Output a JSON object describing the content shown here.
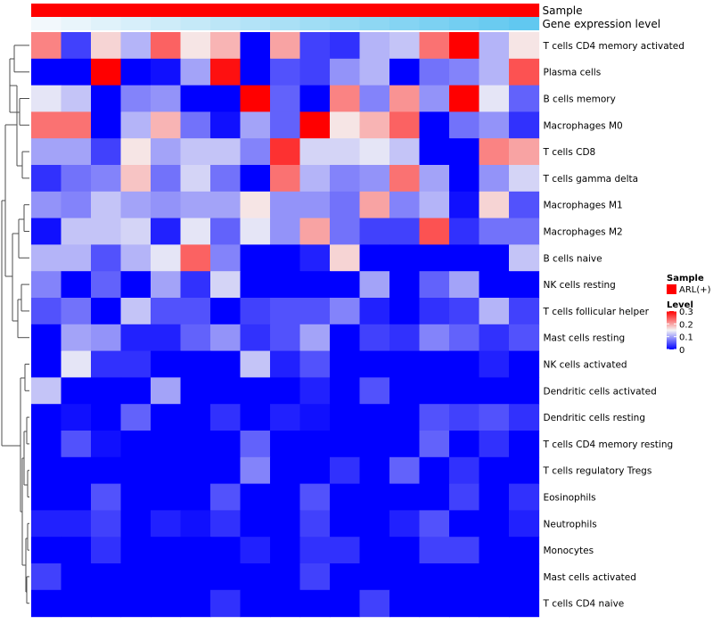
{
  "chart_data": {
    "type": "heatmap",
    "title": "",
    "annotation_labels": [
      "Sample",
      "Gene expression level"
    ],
    "columns": 17,
    "rows": [
      "T cells CD4 memory activated",
      "Plasma cells",
      "B cells memory",
      "Macrophages M0",
      "T cells CD8",
      "T cells gamma delta",
      "Macrophages M1",
      "Macrophages M2",
      "B cells naive",
      "NK cells resting",
      "T cells follicular helper",
      "Mast cells resting",
      "NK cells activated",
      "Dendritic cells activated",
      "Dendritic cells resting",
      "T cells CD4 memory resting",
      "T cells regulatory  Tregs",
      "Eosinophils",
      "Neutrophils",
      "Monocytes",
      "Mast cells activated",
      "T cells CD4 naive"
    ],
    "values": [
      [
        0.22,
        0.04,
        0.17,
        0.11,
        0.24,
        0.16,
        0.19,
        0.0,
        0.2,
        0.04,
        0.03,
        0.11,
        0.12,
        0.23,
        0.3,
        0.11,
        0.16
      ],
      [
        0.0,
        0.0,
        0.3,
        0.0,
        0.01,
        0.1,
        0.29,
        0.0,
        0.05,
        0.04,
        0.09,
        0.11,
        0.0,
        0.07,
        0.08,
        0.11,
        0.25
      ],
      [
        0.14,
        0.12,
        0.0,
        0.08,
        0.09,
        0.0,
        0.0,
        0.3,
        0.06,
        0.0,
        0.22,
        0.08,
        0.21,
        0.09,
        0.3,
        0.14,
        0.06
      ],
      [
        0.23,
        0.23,
        0.0,
        0.11,
        0.19,
        0.07,
        0.01,
        0.1,
        0.06,
        0.3,
        0.16,
        0.19,
        0.24,
        0.0,
        0.07,
        0.09,
        0.03
      ],
      [
        0.1,
        0.1,
        0.04,
        0.16,
        0.1,
        0.12,
        0.12,
        0.08,
        0.27,
        0.13,
        0.13,
        0.14,
        0.12,
        0.0,
        0.0,
        0.22,
        0.2
      ],
      [
        0.03,
        0.07,
        0.08,
        0.18,
        0.07,
        0.13,
        0.07,
        0.0,
        0.23,
        0.11,
        0.08,
        0.09,
        0.23,
        0.1,
        0.0,
        0.09,
        0.13
      ],
      [
        0.09,
        0.08,
        0.12,
        0.1,
        0.09,
        0.1,
        0.1,
        0.16,
        0.09,
        0.09,
        0.07,
        0.2,
        0.08,
        0.11,
        0.01,
        0.17,
        0.05
      ],
      [
        0.01,
        0.12,
        0.12,
        0.13,
        0.02,
        0.14,
        0.06,
        0.14,
        0.09,
        0.2,
        0.07,
        0.04,
        0.04,
        0.25,
        0.03,
        0.07,
        0.07
      ],
      [
        0.11,
        0.11,
        0.05,
        0.11,
        0.14,
        0.24,
        0.08,
        0.0,
        0.0,
        0.02,
        0.17,
        0.0,
        0.0,
        0.0,
        0.0,
        0.0,
        0.12
      ],
      [
        0.08,
        0.0,
        0.06,
        0.0,
        0.1,
        0.03,
        0.13,
        0.0,
        0.0,
        0.0,
        0.0,
        0.1,
        0.0,
        0.06,
        0.1,
        0.0,
        0.0
      ],
      [
        0.05,
        0.07,
        0.0,
        0.12,
        0.05,
        0.05,
        0.0,
        0.04,
        0.05,
        0.05,
        0.08,
        0.02,
        0.0,
        0.03,
        0.04,
        0.11,
        0.04
      ],
      [
        0.0,
        0.1,
        0.09,
        0.02,
        0.02,
        0.06,
        0.09,
        0.03,
        0.05,
        0.1,
        0.0,
        0.04,
        0.03,
        0.08,
        0.06,
        0.03,
        0.05
      ],
      [
        0.0,
        0.14,
        0.03,
        0.03,
        0.0,
        0.0,
        0.0,
        0.12,
        0.02,
        0.05,
        0.0,
        0.0,
        0.0,
        0.0,
        0.0,
        0.02,
        0.0
      ],
      [
        0.12,
        0.0,
        0.0,
        0.0,
        0.1,
        0.0,
        0.0,
        0.0,
        0.0,
        0.02,
        0.0,
        0.05,
        0.0,
        0.0,
        0.0,
        0.0,
        0.0
      ],
      [
        0.0,
        0.01,
        0.0,
        0.06,
        0.0,
        0.0,
        0.03,
        0.0,
        0.02,
        0.01,
        0.0,
        0.0,
        0.0,
        0.05,
        0.04,
        0.05,
        0.03
      ],
      [
        0.0,
        0.05,
        0.01,
        0.0,
        0.0,
        0.0,
        0.0,
        0.06,
        0.0,
        0.0,
        0.0,
        0.0,
        0.0,
        0.06,
        0.0,
        0.03,
        0.0
      ],
      [
        0.0,
        0.0,
        0.0,
        0.0,
        0.0,
        0.0,
        0.0,
        0.08,
        0.0,
        0.0,
        0.03,
        0.0,
        0.06,
        0.0,
        0.03,
        0.0,
        0.0
      ],
      [
        0.0,
        0.0,
        0.05,
        0.0,
        0.0,
        0.0,
        0.05,
        0.0,
        0.0,
        0.05,
        0.0,
        0.0,
        0.0,
        0.0,
        0.04,
        0.0,
        0.03
      ],
      [
        0.02,
        0.02,
        0.04,
        0.0,
        0.02,
        0.01,
        0.03,
        0.0,
        0.0,
        0.04,
        0.0,
        0.0,
        0.02,
        0.05,
        0.0,
        0.0,
        0.02
      ],
      [
        0.0,
        0.0,
        0.03,
        0.0,
        0.0,
        0.0,
        0.0,
        0.02,
        0.0,
        0.03,
        0.03,
        0.0,
        0.0,
        0.04,
        0.04,
        0.0,
        0.0
      ],
      [
        0.04,
        0.0,
        0.0,
        0.0,
        0.0,
        0.0,
        0.0,
        0.0,
        0.0,
        0.04,
        0.0,
        0.0,
        0.0,
        0.0,
        0.0,
        0.0,
        0.0
      ],
      [
        0.0,
        0.0,
        0.0,
        0.0,
        0.0,
        0.0,
        0.03,
        0.0,
        0.0,
        0.0,
        0.0,
        0.04,
        0.0,
        0.0,
        0.0,
        0.0,
        0.0
      ]
    ],
    "sample_group": "ARL(+)",
    "gene_expression_level": [
      0.0,
      0.06,
      0.12,
      0.18,
      0.24,
      0.3,
      0.36,
      0.42,
      0.48,
      0.54,
      0.6,
      0.66,
      0.72,
      0.78,
      0.84,
      0.9,
      0.96
    ],
    "scale": {
      "min": 0,
      "mid": 0.15,
      "max": 0.3,
      "low_color": "#0000ff",
      "mid_color": "#f5f5f5",
      "high_color": "#ff0000"
    },
    "annotation_colors": {
      "sample": "#ff0000",
      "expr_low": "#f2f8fc",
      "expr_high": "#5bc6ef"
    },
    "legend": {
      "sample_title": "Sample",
      "sample_entry": "ARL(+)",
      "level_title": "Level",
      "ticks": [
        "0.3",
        "0.2",
        "0.1",
        "0"
      ],
      "tick_values": [
        0.3,
        0.2,
        0.1,
        0
      ]
    }
  }
}
